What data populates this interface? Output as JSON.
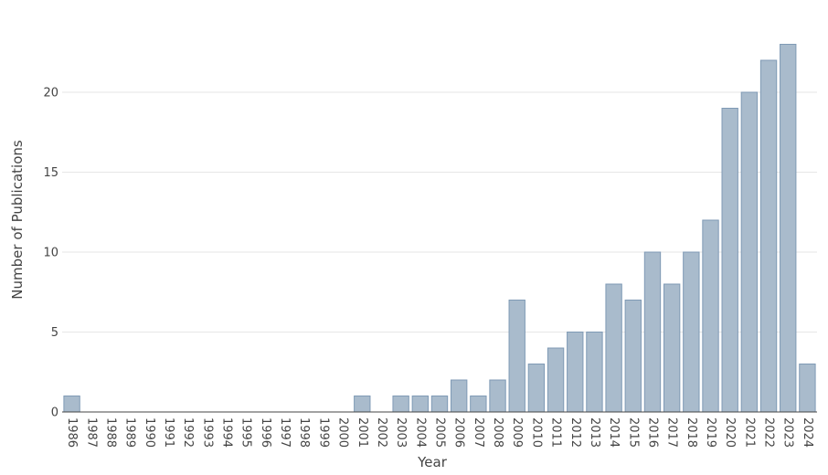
{
  "chart_data": {
    "type": "bar",
    "title": "",
    "xlabel": "Year",
    "ylabel": "Number of Publications",
    "ylim": [
      0,
      24
    ],
    "yticks": [
      0,
      5,
      10,
      15,
      20
    ],
    "grid": true,
    "legend": "none",
    "bar_color": "#a9bbcc",
    "bar_edge_color": "#7f9ab5",
    "categories": [
      "1986",
      "1987",
      "1988",
      "1989",
      "1990",
      "1991",
      "1992",
      "1993",
      "1994",
      "1995",
      "1996",
      "1997",
      "1998",
      "1999",
      "2000",
      "2001",
      "2002",
      "2003",
      "2004",
      "2005",
      "2006",
      "2007",
      "2008",
      "2009",
      "2010",
      "2011",
      "2012",
      "2013",
      "2014",
      "2015",
      "2016",
      "2017",
      "2018",
      "2019",
      "2020",
      "2021",
      "2022",
      "2023",
      "2024"
    ],
    "values": [
      1,
      0,
      0,
      0,
      0,
      0,
      0,
      0,
      0,
      0,
      0,
      0,
      0,
      0,
      0,
      1,
      0,
      1,
      1,
      1,
      2,
      1,
      2,
      7,
      3,
      4,
      5,
      5,
      8,
      7,
      10,
      8,
      10,
      12,
      19,
      20,
      22,
      23,
      3
    ]
  }
}
